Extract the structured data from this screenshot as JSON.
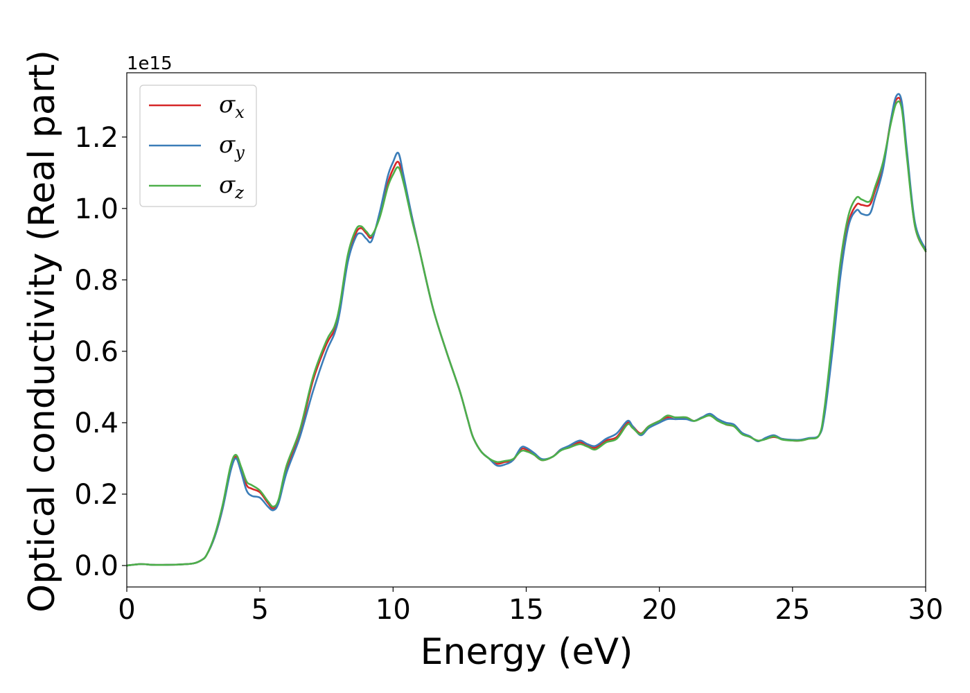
{
  "chart_data": {
    "type": "line",
    "title": "",
    "xlabel": "Energy (eV)",
    "ylabel": "Optical conductivity (Real part)",
    "y_offset_text": "1e15",
    "xlim": [
      0,
      30
    ],
    "ylim": [
      -0.06,
      1.38
    ],
    "x_ticks": [
      0,
      5,
      10,
      15,
      20,
      25,
      30
    ],
    "x_tick_labels": [
      "0",
      "5",
      "10",
      "15",
      "20",
      "25",
      "30"
    ],
    "y_ticks": [
      0.0,
      0.2,
      0.4,
      0.6,
      0.8,
      1.0,
      1.2
    ],
    "y_tick_labels": [
      "0.0",
      "0.2",
      "0.4",
      "0.6",
      "0.8",
      "1.0",
      "1.2"
    ],
    "grid": false,
    "legend_position": "top-left",
    "series": [
      {
        "name": "σ",
        "subscript": "x",
        "color": "#d62728",
        "x": [
          0,
          0.5,
          1,
          1.5,
          2,
          2.5,
          2.8,
          3,
          3.3,
          3.6,
          3.9,
          4.1,
          4.3,
          4.5,
          4.7,
          5,
          5.3,
          5.5,
          5.7,
          6,
          6.5,
          7,
          7.5,
          7.8,
          8,
          8.3,
          8.6,
          8.8,
          9,
          9.2,
          9.5,
          9.8,
          10,
          10.2,
          10.4,
          10.7,
          11,
          11.5,
          12,
          12.5,
          12.8,
          13,
          13.3,
          13.6,
          13.9,
          14.2,
          14.5,
          14.8,
          15,
          15.3,
          15.6,
          16,
          16.3,
          16.6,
          17,
          17.3,
          17.6,
          18,
          18.4,
          18.8,
          19,
          19.3,
          19.6,
          20,
          20.3,
          20.6,
          21,
          21.3,
          21.6,
          21.9,
          22.2,
          22.5,
          22.8,
          23.1,
          23.4,
          23.7,
          24,
          24.3,
          24.6,
          25,
          25.3,
          25.6,
          26,
          26.2,
          26.5,
          26.8,
          27.1,
          27.4,
          27.6,
          27.9,
          28.1,
          28.4,
          28.7,
          28.9,
          29.1,
          29.3,
          29.6,
          30
        ],
        "y": [
          0,
          0.004,
          0.002,
          0.002,
          0.003,
          0.006,
          0.015,
          0.03,
          0.08,
          0.16,
          0.27,
          0.305,
          0.27,
          0.225,
          0.215,
          0.205,
          0.175,
          0.16,
          0.18,
          0.27,
          0.37,
          0.52,
          0.62,
          0.66,
          0.72,
          0.86,
          0.93,
          0.945,
          0.93,
          0.92,
          0.98,
          1.07,
          1.11,
          1.13,
          1.08,
          0.98,
          0.88,
          0.72,
          0.6,
          0.49,
          0.41,
          0.36,
          0.32,
          0.3,
          0.285,
          0.29,
          0.295,
          0.325,
          0.325,
          0.31,
          0.295,
          0.305,
          0.325,
          0.33,
          0.345,
          0.335,
          0.33,
          0.35,
          0.36,
          0.4,
          0.39,
          0.37,
          0.39,
          0.405,
          0.415,
          0.41,
          0.415,
          0.405,
          0.415,
          0.42,
          0.41,
          0.395,
          0.39,
          0.37,
          0.36,
          0.35,
          0.355,
          0.36,
          0.355,
          0.35,
          0.35,
          0.355,
          0.365,
          0.43,
          0.62,
          0.83,
          0.96,
          1.01,
          1.01,
          1.01,
          1.05,
          1.12,
          1.25,
          1.305,
          1.29,
          1.15,
          0.95,
          0.88
        ]
      },
      {
        "name": "σ",
        "subscript": "y",
        "color": "#3b7db8",
        "x": [
          0,
          0.5,
          1,
          1.5,
          2,
          2.5,
          2.8,
          3,
          3.3,
          3.6,
          3.9,
          4.1,
          4.3,
          4.5,
          4.7,
          5,
          5.3,
          5.5,
          5.7,
          6,
          6.5,
          7,
          7.5,
          7.8,
          8,
          8.3,
          8.6,
          8.8,
          9,
          9.2,
          9.5,
          9.8,
          10,
          10.2,
          10.4,
          10.7,
          11,
          11.5,
          12,
          12.5,
          12.8,
          13,
          13.3,
          13.6,
          13.9,
          14.2,
          14.5,
          14.8,
          15,
          15.3,
          15.6,
          16,
          16.3,
          16.6,
          17,
          17.3,
          17.6,
          18,
          18.4,
          18.8,
          19,
          19.3,
          19.6,
          20,
          20.3,
          20.6,
          21,
          21.3,
          21.6,
          21.9,
          22.2,
          22.5,
          22.8,
          23.1,
          23.4,
          23.7,
          24,
          24.3,
          24.6,
          25,
          25.3,
          25.6,
          26,
          26.2,
          26.5,
          26.8,
          27.1,
          27.4,
          27.6,
          27.9,
          28.1,
          28.4,
          28.7,
          28.9,
          29.1,
          29.3,
          29.6,
          30
        ],
        "y": [
          0,
          0.004,
          0.002,
          0.002,
          0.003,
          0.006,
          0.015,
          0.03,
          0.08,
          0.16,
          0.265,
          0.3,
          0.26,
          0.21,
          0.195,
          0.19,
          0.165,
          0.155,
          0.175,
          0.26,
          0.36,
          0.49,
          0.6,
          0.65,
          0.71,
          0.85,
          0.92,
          0.93,
          0.915,
          0.91,
          0.99,
          1.09,
          1.13,
          1.155,
          1.09,
          0.98,
          0.88,
          0.72,
          0.6,
          0.49,
          0.41,
          0.36,
          0.32,
          0.3,
          0.28,
          0.283,
          0.295,
          0.33,
          0.33,
          0.315,
          0.298,
          0.305,
          0.325,
          0.335,
          0.35,
          0.34,
          0.335,
          0.355,
          0.37,
          0.405,
          0.39,
          0.365,
          0.385,
          0.4,
          0.41,
          0.41,
          0.41,
          0.405,
          0.415,
          0.425,
          0.41,
          0.4,
          0.395,
          0.372,
          0.362,
          0.348,
          0.358,
          0.365,
          0.355,
          0.352,
          0.352,
          0.357,
          0.365,
          0.42,
          0.6,
          0.81,
          0.95,
          0.995,
          0.985,
          0.985,
          1.03,
          1.11,
          1.25,
          1.315,
          1.3,
          1.16,
          0.96,
          0.885
        ]
      },
      {
        "name": "σ",
        "subscript": "z",
        "color": "#4daf4a",
        "x": [
          0,
          0.5,
          1,
          1.5,
          2,
          2.5,
          2.8,
          3,
          3.3,
          3.6,
          3.9,
          4.1,
          4.3,
          4.5,
          4.7,
          5,
          5.3,
          5.5,
          5.7,
          6,
          6.5,
          7,
          7.5,
          7.8,
          8,
          8.3,
          8.6,
          8.8,
          9,
          9.2,
          9.5,
          9.8,
          10,
          10.2,
          10.4,
          10.7,
          11,
          11.5,
          12,
          12.5,
          12.8,
          13,
          13.3,
          13.6,
          13.9,
          14.2,
          14.5,
          14.8,
          15,
          15.3,
          15.6,
          16,
          16.3,
          16.6,
          17,
          17.3,
          17.6,
          18,
          18.4,
          18.8,
          19,
          19.3,
          19.6,
          20,
          20.3,
          20.6,
          21,
          21.3,
          21.6,
          21.9,
          22.2,
          22.5,
          22.8,
          23.1,
          23.4,
          23.7,
          24,
          24.3,
          24.6,
          25,
          25.3,
          25.6,
          26,
          26.2,
          26.5,
          26.8,
          27.1,
          27.4,
          27.6,
          27.9,
          28.1,
          28.4,
          28.7,
          28.9,
          29.1,
          29.3,
          29.6,
          30
        ],
        "y": [
          0,
          0.004,
          0.002,
          0.002,
          0.003,
          0.006,
          0.015,
          0.03,
          0.085,
          0.17,
          0.28,
          0.31,
          0.275,
          0.235,
          0.225,
          0.21,
          0.18,
          0.165,
          0.185,
          0.28,
          0.38,
          0.53,
          0.63,
          0.67,
          0.73,
          0.87,
          0.94,
          0.95,
          0.935,
          0.925,
          0.975,
          1.06,
          1.095,
          1.115,
          1.07,
          0.97,
          0.88,
          0.72,
          0.6,
          0.49,
          0.41,
          0.36,
          0.32,
          0.3,
          0.29,
          0.293,
          0.298,
          0.32,
          0.32,
          0.31,
          0.295,
          0.305,
          0.322,
          0.33,
          0.34,
          0.333,
          0.325,
          0.345,
          0.355,
          0.395,
          0.385,
          0.368,
          0.39,
          0.405,
          0.42,
          0.415,
          0.415,
          0.405,
          0.413,
          0.42,
          0.405,
          0.395,
          0.39,
          0.368,
          0.36,
          0.35,
          0.354,
          0.362,
          0.353,
          0.35,
          0.35,
          0.355,
          0.365,
          0.44,
          0.64,
          0.85,
          0.98,
          1.03,
          1.025,
          1.02,
          1.06,
          1.13,
          1.24,
          1.295,
          1.28,
          1.14,
          0.95,
          0.88
        ]
      }
    ]
  }
}
